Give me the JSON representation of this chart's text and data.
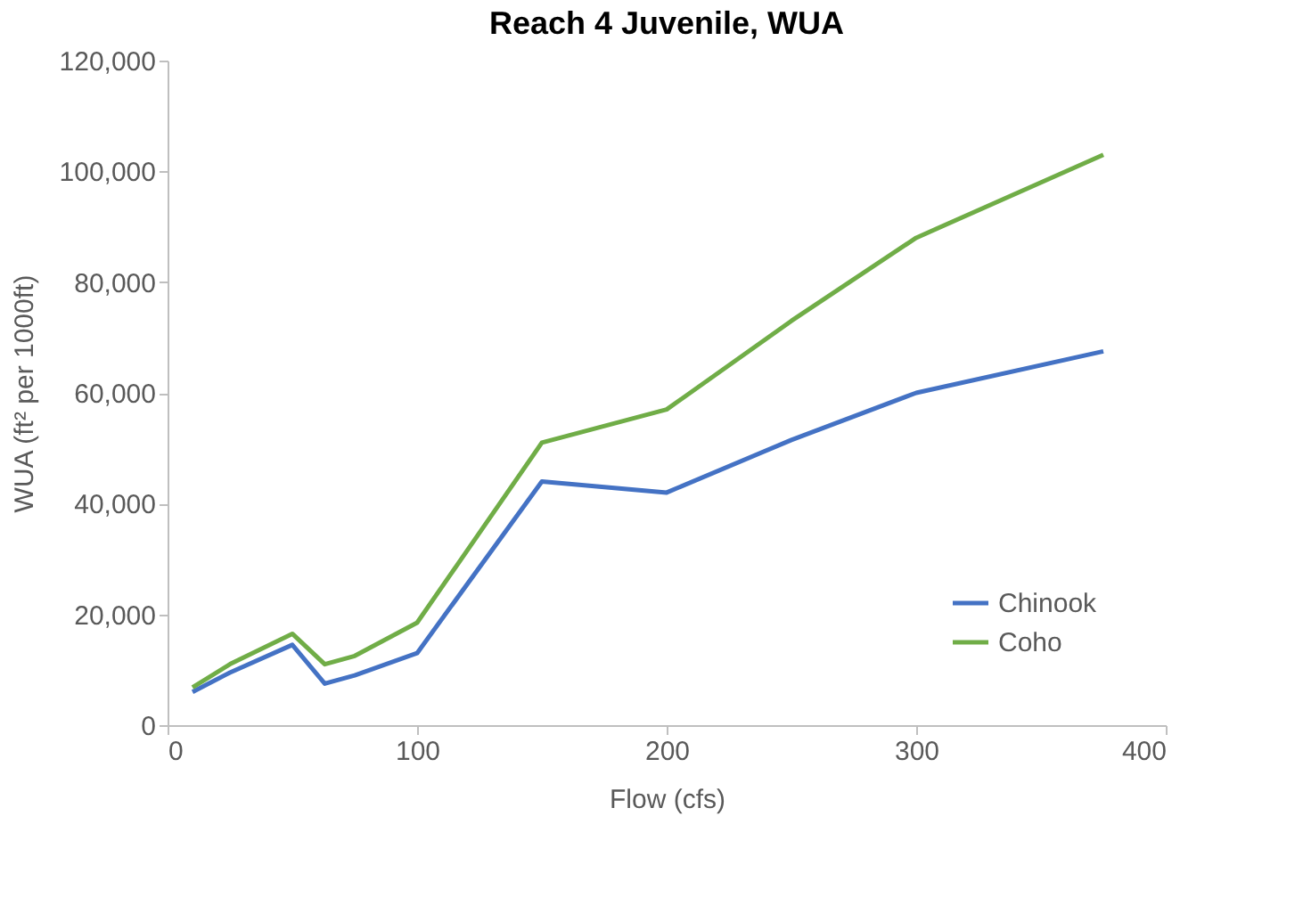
{
  "chart_data": {
    "type": "line",
    "title": "Reach 4 Juvenile, WUA",
    "xlabel": "Flow (cfs)",
    "ylabel": "WUA (ft² per 1000ft)",
    "x": [
      10,
      25,
      50,
      63,
      75,
      100,
      150,
      200,
      250,
      300,
      375
    ],
    "series": [
      {
        "name": "Chinook",
        "color": "#4472c4",
        "values": [
          6000,
          9500,
          14500,
          7500,
          9000,
          13000,
          44000,
          42000,
          51500,
          60000,
          67500
        ]
      },
      {
        "name": "Coho",
        "color": "#70ad47",
        "values": [
          6800,
          11000,
          16500,
          11000,
          12500,
          18500,
          51000,
          57000,
          73000,
          88000,
          103000
        ]
      }
    ],
    "xlim": [
      0,
      400
    ],
    "xticks": [
      0,
      100,
      200,
      300,
      400
    ],
    "ylim": [
      0,
      120000
    ],
    "yticks": [
      0,
      {
        "value": 20000,
        "label": "20,000"
      },
      {
        "value": 40000,
        "label": "40,000"
      },
      {
        "value": 60000,
        "label": "60,000"
      },
      {
        "value": 80000,
        "label": "80,000"
      },
      {
        "value": 100000,
        "label": "100,000"
      },
      {
        "value": 120000,
        "label": "120,000"
      }
    ],
    "grid": false,
    "legend": "bottom right",
    "marker": "none",
    "line_style": "solid"
  }
}
